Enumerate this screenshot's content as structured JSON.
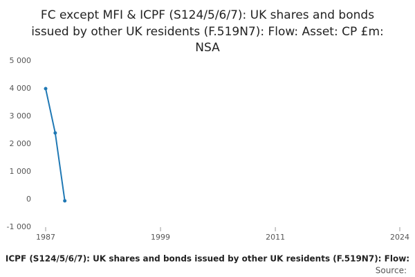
{
  "chart_data": {
    "type": "line",
    "title_lines": [
      "FC except MFI & ICPF (S124/5/6/7): UK shares and bonds",
      "issued by other UK residents (F.519N7): Flow: Asset: CP £m:",
      "NSA"
    ],
    "x": [
      1987,
      1988,
      1989
    ],
    "series": [
      {
        "color": "#1f78b4",
        "values": [
          4000,
          2400,
          -50
        ]
      }
    ],
    "xlim": [
      1987,
      2024
    ],
    "xticks": [
      1987,
      1999,
      2011,
      2024
    ],
    "ylim": [
      -1000,
      5000
    ],
    "yticks": [
      {
        "value": -1000,
        "label": "-1 000"
      },
      0,
      {
        "value": 1000,
        "label": "1 000"
      },
      {
        "value": 2000,
        "label": "2 000"
      },
      {
        "value": 3000,
        "label": "3 000"
      },
      {
        "value": 4000,
        "label": "4 000"
      },
      {
        "value": 5000,
        "label": "5 000"
      }
    ],
    "grid": false,
    "xlabel": "ICPF (S124/5/6/7): UK shares and bonds issued by other UK residents (F.519N7): Flow:",
    "source": "Source:"
  }
}
